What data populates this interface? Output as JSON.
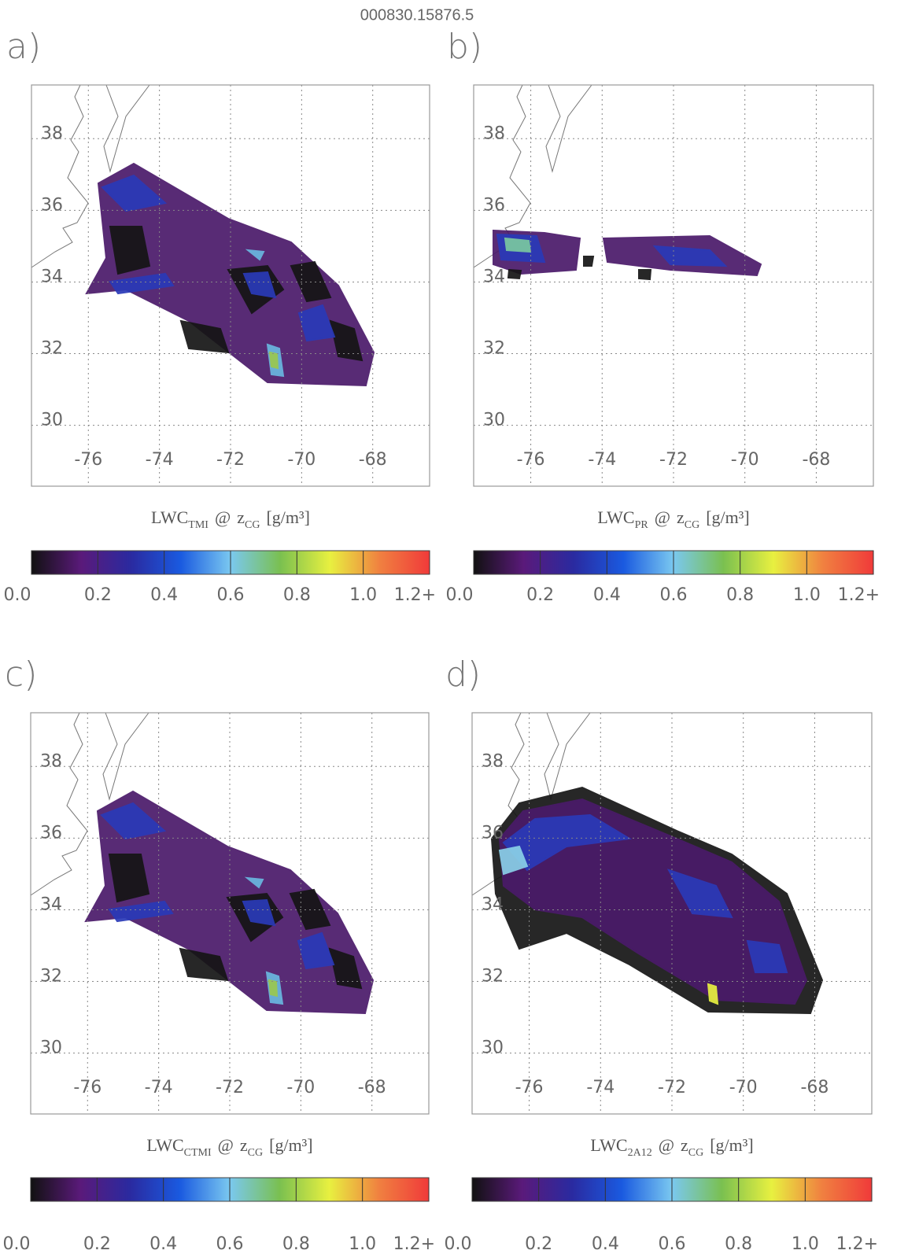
{
  "title": "000830.15876.5",
  "chart_data": [
    {
      "type": "map",
      "panel": "a)",
      "xlim": [
        -77.6,
        -66.4
      ],
      "xticks": [
        -76,
        -74,
        -72,
        -70,
        -68
      ],
      "ylim": [
        28.3,
        39.5
      ],
      "yticks": [
        30,
        32,
        34,
        36,
        38
      ],
      "grid": true,
      "colorbar": {
        "label": {
          "var": "LWC",
          "var_sub": "TMI",
          "at": "@",
          "height": "z",
          "height_sub": "CG",
          "units": "[g/m³]"
        },
        "clim": [
          0,
          1.2
        ],
        "ticks": [
          {
            "value": 0,
            "label": "0.0"
          },
          0.2,
          0.4,
          0.6,
          0.8,
          {
            "value": 1,
            "label": "1.0"
          },
          {
            "value": 1.2,
            "label": "1.2+"
          }
        ],
        "colors": [
          "#111111",
          "#5a1a7a",
          "#2a2aa0",
          "#1a5ae0",
          "#7ac8f0",
          "#7ac050",
          "#e8f040",
          "#f08040",
          "#f03a3a"
        ]
      }
    },
    {
      "type": "map",
      "panel": "b)",
      "xlim": [
        -77.6,
        -66.4
      ],
      "xticks": [
        -76,
        -74,
        -72,
        -70,
        -68
      ],
      "ylim": [
        28.3,
        39.5
      ],
      "yticks": [
        30,
        32,
        34,
        36,
        38
      ],
      "grid": true,
      "colorbar": {
        "label": {
          "var": "LWC",
          "var_sub": "PR",
          "at": "@",
          "height": "z",
          "height_sub": "CG",
          "units": "[g/m³]"
        },
        "clim": [
          0,
          1.2
        ],
        "ticks": [
          {
            "value": 0,
            "label": "0.0"
          },
          0.2,
          0.4,
          0.6,
          0.8,
          {
            "value": 1,
            "label": "1.0"
          },
          {
            "value": 1.2,
            "label": "1.2+"
          }
        ],
        "colors": [
          "#111111",
          "#5a1a7a",
          "#2a2aa0",
          "#1a5ae0",
          "#7ac8f0",
          "#7ac050",
          "#e8f040",
          "#f08040",
          "#f03a3a"
        ]
      }
    },
    {
      "type": "map",
      "panel": "c)",
      "xlim": [
        -77.6,
        -66.4
      ],
      "xticks": [
        -76,
        -74,
        -72,
        -70,
        -68
      ],
      "ylim": [
        28.3,
        39.5
      ],
      "yticks": [
        30,
        32,
        34,
        36,
        38
      ],
      "grid": true,
      "colorbar": {
        "label": {
          "var": "LWC",
          "var_sub": "CTMI",
          "at": "@",
          "height": "z",
          "height_sub": "CG",
          "units": "[g/m³]"
        },
        "clim": [
          0,
          1.2
        ],
        "ticks": [
          {
            "value": 0,
            "label": "0.0"
          },
          0.2,
          0.4,
          0.6,
          0.8,
          {
            "value": 1,
            "label": "1.0"
          },
          {
            "value": 1.2,
            "label": "1.2+"
          }
        ],
        "colors": [
          "#111111",
          "#5a1a7a",
          "#2a2aa0",
          "#1a5ae0",
          "#7ac8f0",
          "#7ac050",
          "#e8f040",
          "#f08040",
          "#f03a3a"
        ]
      }
    },
    {
      "type": "map",
      "panel": "d)",
      "xlim": [
        -77.6,
        -66.4
      ],
      "xticks": [
        -76,
        -74,
        -72,
        -70,
        -68
      ],
      "ylim": [
        28.3,
        39.5
      ],
      "yticks": [
        30,
        32,
        34,
        36,
        38
      ],
      "grid": true,
      "colorbar": {
        "label": {
          "var": "LWC",
          "var_sub": "2A12",
          "at": "@",
          "height": "z",
          "height_sub": "CG",
          "units": "[g/m³]"
        },
        "clim": [
          0,
          1.2
        ],
        "ticks": [
          {
            "value": 0,
            "label": "0.0"
          },
          0.2,
          0.4,
          0.6,
          0.8,
          {
            "value": 1,
            "label": "1.0"
          },
          {
            "value": 1.2,
            "label": "1.2+"
          }
        ],
        "colors": [
          "#111111",
          "#5a1a7a",
          "#2a2aa0",
          "#1a5ae0",
          "#7ac8f0",
          "#7ac050",
          "#e8f040",
          "#f08040",
          "#f03a3a"
        ]
      }
    }
  ]
}
